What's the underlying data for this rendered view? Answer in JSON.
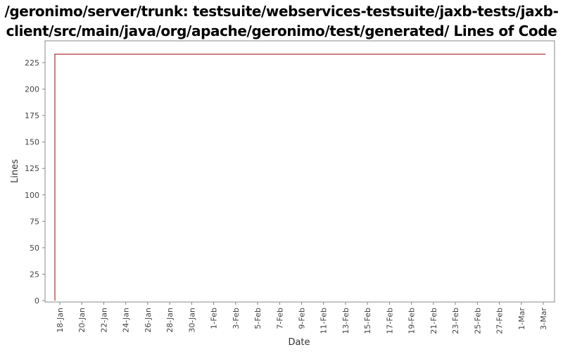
{
  "chart_data": {
    "type": "line",
    "title": "/geronimo/server/trunk: testsuite/webservices-testsuite/jaxb-tests/jaxb-client/src/main/java/org/apache/geronimo/test/generated/ Lines of Code",
    "xlabel": "Date",
    "ylabel": "Lines",
    "ylim": [
      0,
      240
    ],
    "y_ticks": [
      0,
      25,
      50,
      75,
      100,
      125,
      150,
      175,
      200,
      225
    ],
    "x_ticks": [
      "18-Jan",
      "20-Jan",
      "22-Jan",
      "24-Jan",
      "26-Jan",
      "28-Jan",
      "30-Jan",
      "1-Feb",
      "3-Feb",
      "5-Feb",
      "7-Feb",
      "9-Feb",
      "11-Feb",
      "13-Feb",
      "15-Feb",
      "17-Feb",
      "19-Feb",
      "21-Feb",
      "23-Feb",
      "25-Feb",
      "27-Feb",
      "1-Mar",
      "3-Mar"
    ],
    "x_range": [
      "18-Jan",
      "3-Mar"
    ],
    "series": [
      {
        "color": "#990000",
        "points": [
          {
            "x": "18-Jan",
            "y": 0
          },
          {
            "x": "18-Jan",
            "y": 233
          },
          {
            "x": "3-Mar",
            "y": 233
          }
        ]
      }
    ],
    "grid": false,
    "legend": "none"
  }
}
